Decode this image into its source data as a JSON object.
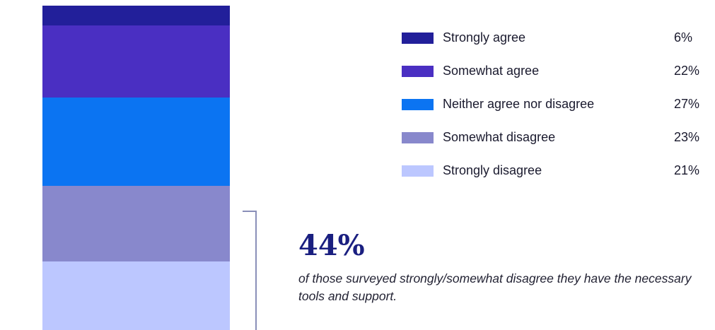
{
  "chart_data": {
    "type": "bar",
    "stacked": true,
    "orientation": "vertical",
    "categories": [
      "Strongly agree",
      "Somewhat agree",
      "Neither agree nor disagree",
      "Somewhat disagree",
      "Strongly disagree"
    ],
    "values": [
      6,
      22,
      27,
      23,
      21
    ],
    "value_labels": [
      "6%",
      "22%",
      "27%",
      "23%",
      "21%"
    ],
    "unit": "%",
    "colors": [
      "#221f9a",
      "#4a2fc2",
      "#0b74f2",
      "#8888cc",
      "#bcc7ff"
    ],
    "legend_position": "right",
    "grid": false
  },
  "callout": {
    "value": "44%",
    "text": "of those surveyed strongly/somewhat disagree they have the necessary tools and support."
  }
}
